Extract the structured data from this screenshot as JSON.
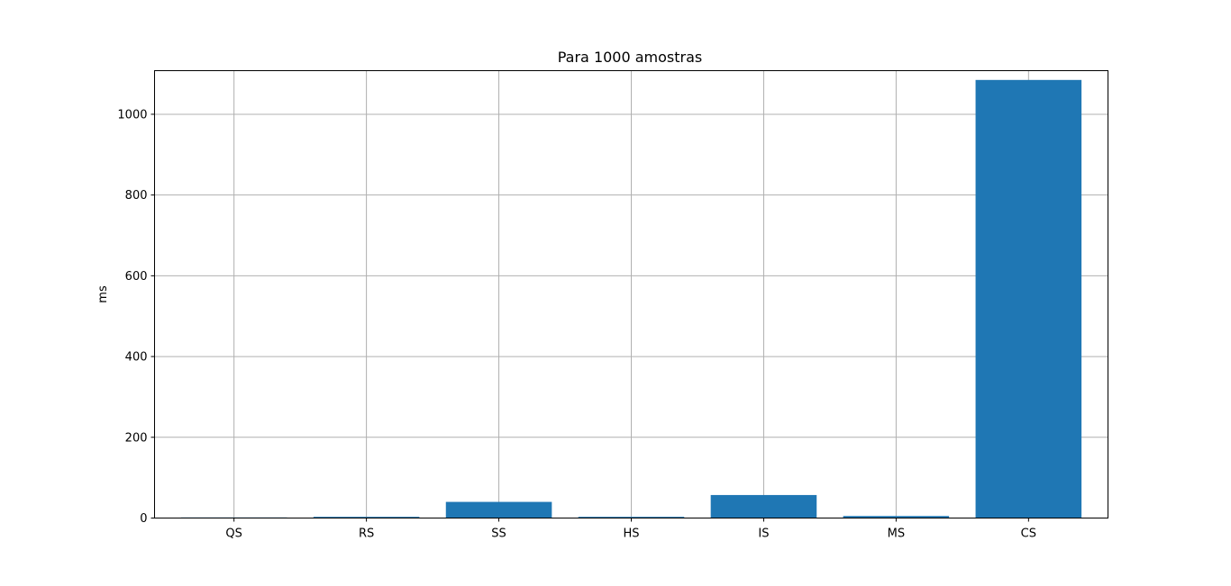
{
  "chart_data": {
    "type": "bar",
    "title": "Para 1000 amostras",
    "xlabel": "",
    "ylabel": "ms",
    "categories": [
      "QS",
      "RS",
      "SS",
      "HS",
      "IS",
      "MS",
      "CS"
    ],
    "values": [
      1.5,
      3,
      40,
      3,
      57,
      5,
      1085
    ],
    "ylim": [
      0,
      1108
    ],
    "yticks": [
      0,
      200,
      400,
      600,
      800,
      1000
    ],
    "grid": true,
    "bar_color": "#1f77b4"
  }
}
